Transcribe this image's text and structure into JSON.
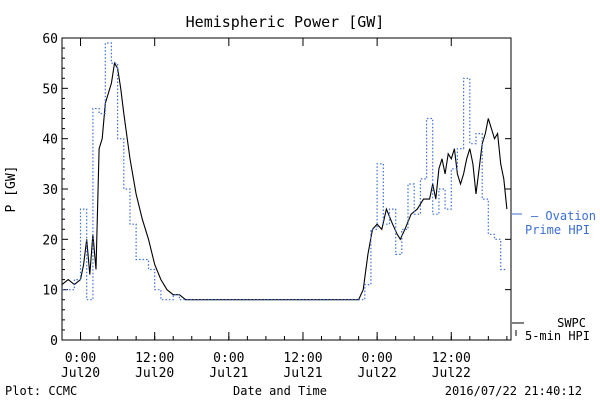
{
  "chart_data": {
    "type": "line",
    "title": "Hemispheric Power [GW]",
    "xlabel": "Date and Time",
    "ylabel": "P [GW]",
    "ylim": [
      0,
      60
    ],
    "xlim": [
      "2016-07-19 21:00",
      "2016-07-22 21:40"
    ],
    "grid": false,
    "yticks": [
      "0",
      "10",
      "20",
      "30",
      "40",
      "50",
      "60"
    ],
    "xticks": [
      {
        "time": "2016-07-20 00:00",
        "label_top": "0:00",
        "label_bottom": "Jul20"
      },
      {
        "time": "2016-07-20 12:00",
        "label_top": "12:00",
        "label_bottom": "Jul20"
      },
      {
        "time": "2016-07-21 00:00",
        "label_top": "0:00",
        "label_bottom": "Jul21"
      },
      {
        "time": "2016-07-21 12:00",
        "label_top": "12:00",
        "label_bottom": "Jul21"
      },
      {
        "time": "2016-07-22 00:00",
        "label_top": "0:00",
        "label_bottom": "Jul22"
      },
      {
        "time": "2016-07-22 12:00",
        "label_top": "12:00",
        "label_bottom": "Jul22"
      }
    ],
    "series": [
      {
        "name": "SWPC 5-min HPI",
        "color": "#000000",
        "style": "solid",
        "legend": [
          "SWPC",
          "5-min HPI"
        ],
        "points": [
          [
            "2016-07-19 21:00",
            11
          ],
          [
            "2016-07-19 22:00",
            12
          ],
          [
            "2016-07-19 23:00",
            11
          ],
          [
            "2016-07-20 00:00",
            12
          ],
          [
            "2016-07-20 00:30",
            15
          ],
          [
            "2016-07-20 01:00",
            20
          ],
          [
            "2016-07-20 01:30",
            13
          ],
          [
            "2016-07-20 02:00",
            21
          ],
          [
            "2016-07-20 02:30",
            14
          ],
          [
            "2016-07-20 03:00",
            38
          ],
          [
            "2016-07-20 03:30",
            40
          ],
          [
            "2016-07-20 04:00",
            47
          ],
          [
            "2016-07-20 05:00",
            51
          ],
          [
            "2016-07-20 05:30",
            55
          ],
          [
            "2016-07-20 06:00",
            54
          ],
          [
            "2016-07-20 06:30",
            50
          ],
          [
            "2016-07-20 07:00",
            45
          ],
          [
            "2016-07-20 08:00",
            36
          ],
          [
            "2016-07-20 09:00",
            29
          ],
          [
            "2016-07-20 10:00",
            24
          ],
          [
            "2016-07-20 11:00",
            20
          ],
          [
            "2016-07-20 12:00",
            15
          ],
          [
            "2016-07-20 13:00",
            12
          ],
          [
            "2016-07-20 14:00",
            10
          ],
          [
            "2016-07-20 15:00",
            9
          ],
          [
            "2016-07-20 16:00",
            9
          ],
          [
            "2016-07-20 17:00",
            8
          ],
          [
            "2016-07-20 18:00",
            8
          ],
          [
            "2016-07-21 00:00",
            8
          ],
          [
            "2016-07-21 12:00",
            8
          ],
          [
            "2016-07-21 21:00",
            8
          ],
          [
            "2016-07-21 21:45",
            10
          ],
          [
            "2016-07-21 22:30",
            17
          ],
          [
            "2016-07-21 23:15",
            22
          ],
          [
            "2016-07-22 00:00",
            23
          ],
          [
            "2016-07-22 00:45",
            22
          ],
          [
            "2016-07-22 01:30",
            26
          ],
          [
            "2016-07-22 02:30",
            23
          ],
          [
            "2016-07-22 03:15",
            21
          ],
          [
            "2016-07-22 03:45",
            20
          ],
          [
            "2016-07-22 04:30",
            22
          ],
          [
            "2016-07-22 05:30",
            25
          ],
          [
            "2016-07-22 06:30",
            26
          ],
          [
            "2016-07-22 07:30",
            28
          ],
          [
            "2016-07-22 08:30",
            28
          ],
          [
            "2016-07-22 09:00",
            31
          ],
          [
            "2016-07-22 09:30",
            28
          ],
          [
            "2016-07-22 10:00",
            34
          ],
          [
            "2016-07-22 10:30",
            36
          ],
          [
            "2016-07-22 11:00",
            33
          ],
          [
            "2016-07-22 11:30",
            37
          ],
          [
            "2016-07-22 12:00",
            36
          ],
          [
            "2016-07-22 12:30",
            38
          ],
          [
            "2016-07-22 13:00",
            33
          ],
          [
            "2016-07-22 13:30",
            31
          ],
          [
            "2016-07-22 14:00",
            33
          ],
          [
            "2016-07-22 14:30",
            36
          ],
          [
            "2016-07-22 15:00",
            38
          ],
          [
            "2016-07-22 15:30",
            35
          ],
          [
            "2016-07-22 16:00",
            29
          ],
          [
            "2016-07-22 16:30",
            34
          ],
          [
            "2016-07-22 17:00",
            39
          ],
          [
            "2016-07-22 17:30",
            41
          ],
          [
            "2016-07-22 18:00",
            44
          ],
          [
            "2016-07-22 18:30",
            42
          ],
          [
            "2016-07-22 19:00",
            40
          ],
          [
            "2016-07-22 19:30",
            41
          ],
          [
            "2016-07-22 20:00",
            35
          ],
          [
            "2016-07-22 20:30",
            32
          ],
          [
            "2016-07-22 21:00",
            26
          ]
        ]
      },
      {
        "name": "Ovation Prime HPI",
        "color": "#3b6fd4",
        "style": "dotted",
        "legend": [
          "– Ovation",
          "Prime HPI"
        ],
        "points": [
          [
            "2016-07-19 21:00",
            10
          ],
          [
            "2016-07-19 23:00",
            12
          ],
          [
            "2016-07-20 00:00",
            26
          ],
          [
            "2016-07-20 01:00",
            8
          ],
          [
            "2016-07-20 02:00",
            46
          ],
          [
            "2016-07-20 03:00",
            45
          ],
          [
            "2016-07-20 04:00",
            59
          ],
          [
            "2016-07-20 05:00",
            55
          ],
          [
            "2016-07-20 06:00",
            40
          ],
          [
            "2016-07-20 07:00",
            30
          ],
          [
            "2016-07-20 08:00",
            23
          ],
          [
            "2016-07-20 09:00",
            16
          ],
          [
            "2016-07-20 11:00",
            14
          ],
          [
            "2016-07-20 12:00",
            10
          ],
          [
            "2016-07-20 13:00",
            8
          ],
          [
            "2016-07-20 15:00",
            9
          ],
          [
            "2016-07-20 16:00",
            8
          ],
          [
            "2016-07-21 12:00",
            8
          ],
          [
            "2016-07-21 21:00",
            8
          ],
          [
            "2016-07-21 22:00",
            11
          ],
          [
            "2016-07-21 23:00",
            22
          ],
          [
            "2016-07-22 00:00",
            35
          ],
          [
            "2016-07-22 01:00",
            23
          ],
          [
            "2016-07-22 02:00",
            26
          ],
          [
            "2016-07-22 03:00",
            17
          ],
          [
            "2016-07-22 04:00",
            22
          ],
          [
            "2016-07-22 05:00",
            31
          ],
          [
            "2016-07-22 06:00",
            25
          ],
          [
            "2016-07-22 07:00",
            32
          ],
          [
            "2016-07-22 08:00",
            44
          ],
          [
            "2016-07-22 09:00",
            25
          ],
          [
            "2016-07-22 10:00",
            30
          ],
          [
            "2016-07-22 11:00",
            26
          ],
          [
            "2016-07-22 12:00",
            34
          ],
          [
            "2016-07-22 13:00",
            38
          ],
          [
            "2016-07-22 14:00",
            52
          ],
          [
            "2016-07-22 15:00",
            39
          ],
          [
            "2016-07-22 16:00",
            41
          ],
          [
            "2016-07-22 17:00",
            28
          ],
          [
            "2016-07-22 18:00",
            21
          ],
          [
            "2016-07-22 19:00",
            20
          ],
          [
            "2016-07-22 20:00",
            14
          ]
        ]
      }
    ]
  },
  "footer": {
    "left": "Plot: CCMC",
    "center": "Date and Time",
    "right": "2016/07/22 21:40:12"
  }
}
